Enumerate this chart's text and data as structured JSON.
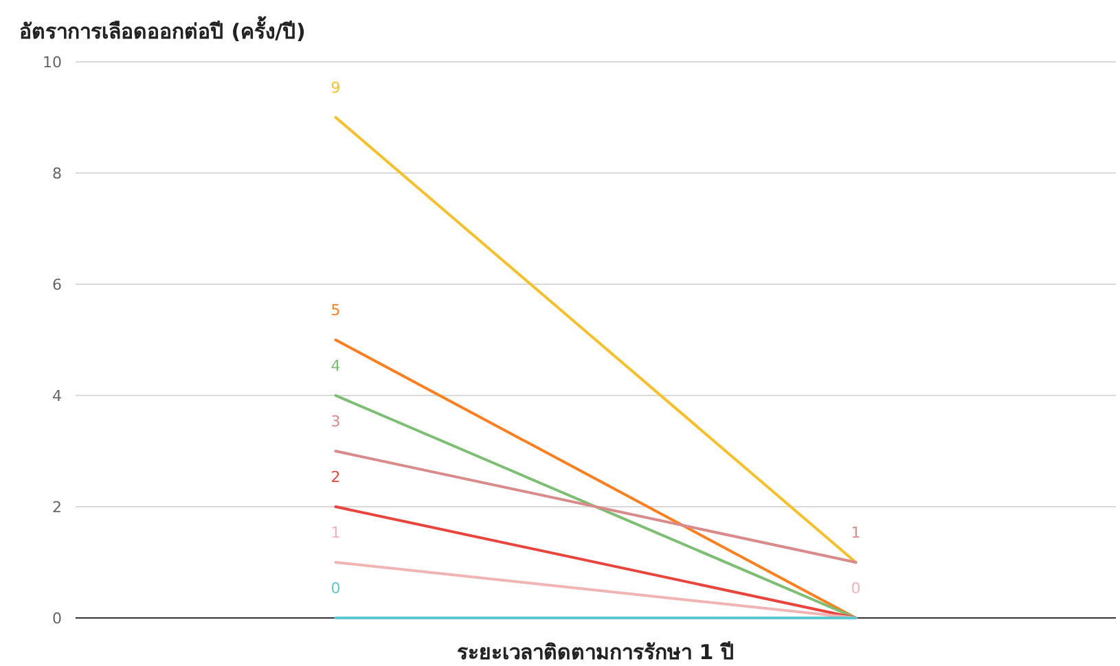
{
  "chart_data": {
    "type": "line",
    "title": "อัตราการเลือดออกต่อปี (ครั้ง/ปี)",
    "xlabel": "ระยะเวลาติดตามการรักษา 1 ปี",
    "categories": [
      null,
      null
    ],
    "ylim": [
      0,
      10
    ],
    "yticks": [
      0,
      2,
      4,
      6,
      8,
      10
    ],
    "grid": "y",
    "marker": "none",
    "line_style": "solid",
    "series": [
      {
        "color": "#f6c026",
        "values": [
          9,
          1
        ],
        "value_labels": [
          "9",
          null
        ]
      },
      {
        "color": "#ff7f1e",
        "values": [
          5,
          0
        ],
        "value_labels": [
          "5",
          null
        ]
      },
      {
        "color": "#7dbf72",
        "values": [
          4,
          0
        ],
        "value_labels": [
          "4",
          null
        ]
      },
      {
        "color": "#d98a8a",
        "values": [
          3,
          1
        ],
        "value_labels": [
          "3",
          "1"
        ]
      },
      {
        "color": "#e8453c",
        "values": [
          2,
          0
        ],
        "value_labels": [
          "2",
          null
        ]
      },
      {
        "color": "#f0b4b4",
        "values": [
          1,
          0
        ],
        "value_labels": [
          "1",
          "0"
        ]
      },
      {
        "color": "#5bc8d0",
        "values": [
          0,
          0
        ],
        "value_labels": [
          "0",
          null
        ]
      }
    ]
  }
}
